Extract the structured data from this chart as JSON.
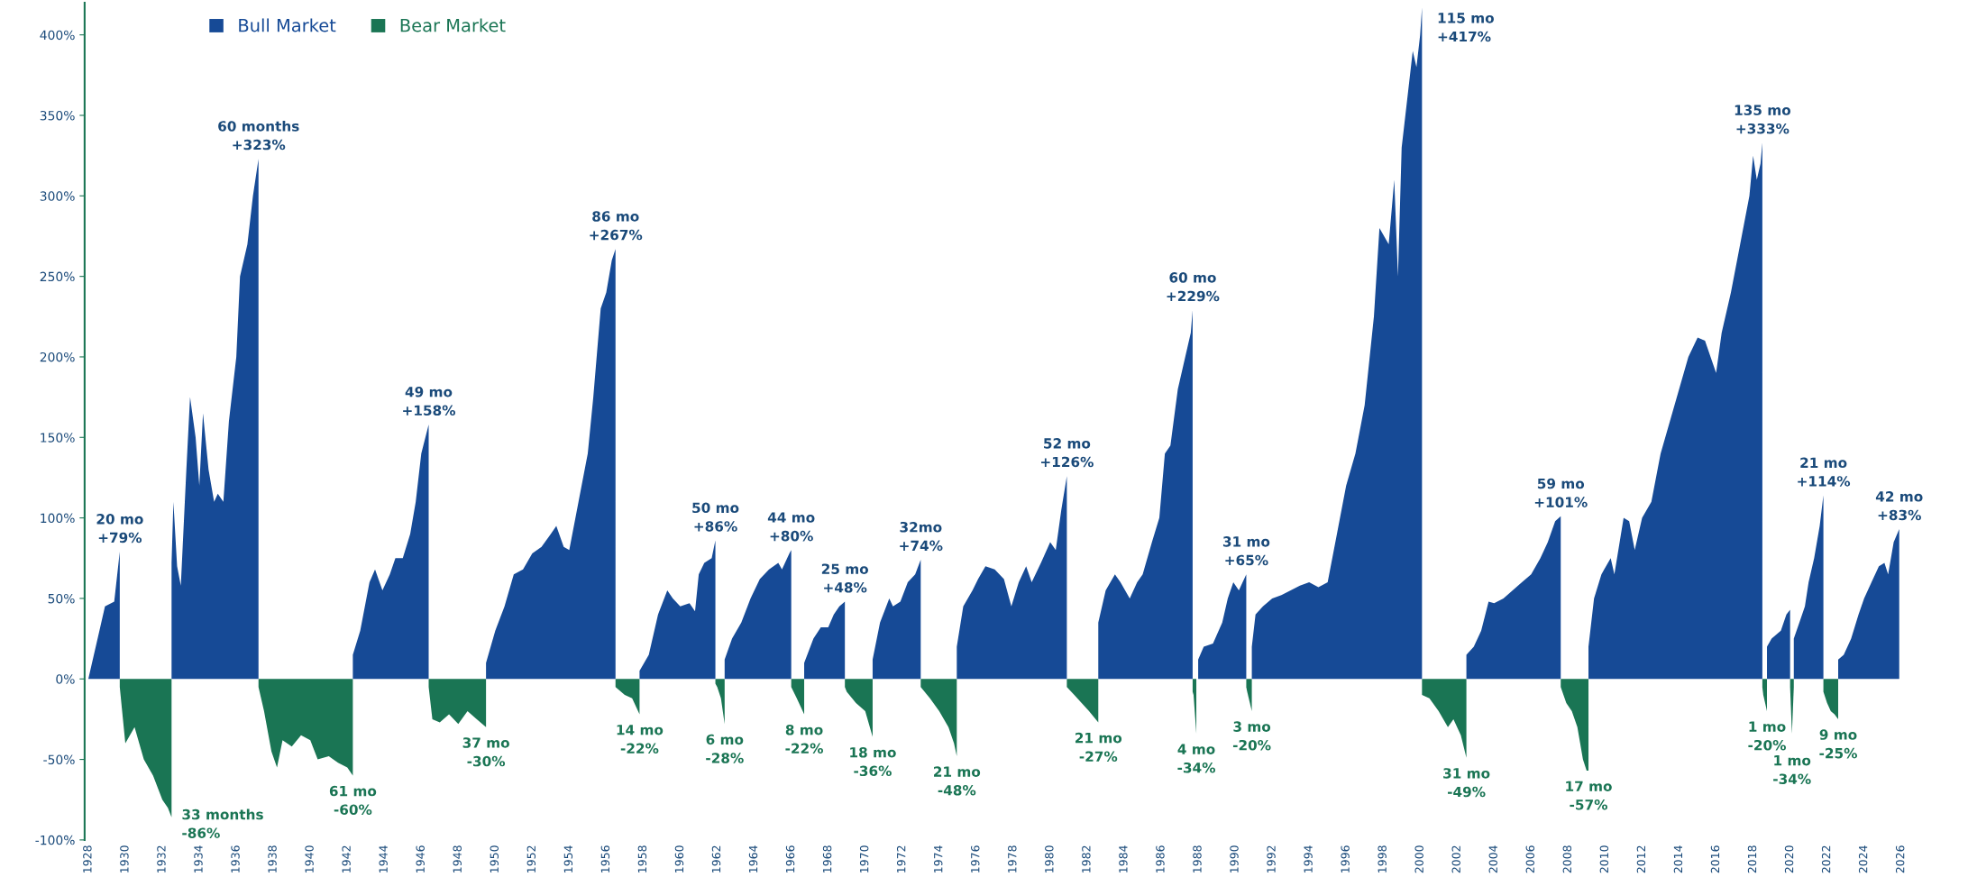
{
  "chart_data": {
    "type": "area",
    "legend": "top left",
    "grid": false,
    "xlim": [
      1927.8,
      2026
    ],
    "ylim": [
      -100,
      420
    ],
    "xticks": [
      1928,
      1930,
      1932,
      1934,
      1936,
      1938,
      1940,
      1942,
      1944,
      1946,
      1948,
      1950,
      1952,
      1954,
      1956,
      1958,
      1960,
      1962,
      1964,
      1966,
      1968,
      1970,
      1972,
      1974,
      1976,
      1978,
      1980,
      1982,
      1984,
      1986,
      1988,
      1990,
      1992,
      1994,
      1996,
      1998,
      2000,
      2002,
      2004,
      2006,
      2008,
      2010,
      2012,
      2014,
      2016,
      2018,
      2020,
      2022,
      2024,
      2026
    ],
    "yticks": [
      {
        "value": 400,
        "label": "400%"
      },
      {
        "value": 350,
        "label": "350%"
      },
      {
        "value": 300,
        "label": "300%"
      },
      {
        "value": 250,
        "label": "250%"
      },
      {
        "value": 200,
        "label": "200%"
      },
      {
        "value": 150,
        "label": "150%"
      },
      {
        "value": 100,
        "label": "100%"
      },
      {
        "value": 50,
        "label": "50%"
      },
      {
        "value": 0,
        "label": "0%"
      },
      {
        "value": -50,
        "label": "-50%"
      },
      {
        "value": -100,
        "label": "-100%"
      }
    ],
    "series": [
      {
        "name": "Bull Market",
        "color": "#164a96",
        "x": [
          1928.0,
          1928.3,
          1928.6,
          1928.9,
          1929.4,
          1929.7,
          1929.71,
          1932.5,
          1932.6,
          1932.8,
          1933.0,
          1933.3,
          1933.5,
          1933.8,
          1934.0,
          1934.2,
          1934.5,
          1934.8,
          1935.0,
          1935.3,
          1935.6,
          1936.0,
          1936.2,
          1936.6,
          1936.9,
          1937.2,
          1937.21,
          1942.3,
          1942.7,
          1943.2,
          1943.5,
          1943.9,
          1944.3,
          1944.6,
          1945.0,
          1945.4,
          1945.7,
          1946.0,
          1946.4,
          1946.41,
          1949.5,
          1950.0,
          1950.5,
          1951.0,
          1951.5,
          1952.0,
          1952.5,
          1953.0,
          1953.3,
          1953.7,
          1954.0,
          1954.5,
          1955.0,
          1955.3,
          1955.7,
          1956.0,
          1956.3,
          1956.5,
          1956.51,
          1957.8,
          1958.3,
          1958.8,
          1959.3,
          1959.6,
          1960.0,
          1960.5,
          1960.8,
          1961.0,
          1961.3,
          1961.7,
          1961.9,
          1961.91,
          1962.4,
          1962.8,
          1963.3,
          1963.8,
          1964.3,
          1964.8,
          1965.3,
          1965.5,
          1965.9,
          1966.0,
          1966.01,
          1966.7,
          1967.2,
          1967.6,
          1968.0,
          1968.3,
          1968.6,
          1968.9,
          1968.91,
          1970.4,
          1970.8,
          1971.3,
          1971.5,
          1971.9,
          1972.3,
          1972.7,
          1973.0,
          1973.01,
          1974.95,
          1975.3,
          1975.8,
          1976.1,
          1976.5,
          1977.0,
          1977.5,
          1977.9,
          1978.3,
          1978.7,
          1979.0,
          1979.5,
          1980.0,
          1980.3,
          1980.6,
          1980.9,
          1980.91,
          1982.6,
          1983.0,
          1983.5,
          1983.8,
          1984.3,
          1984.7,
          1985.0,
          1985.5,
          1985.9,
          1986.2,
          1986.5,
          1986.9,
          1987.2,
          1987.6,
          1987.7,
          1987.71,
          1988.0,
          1988.3,
          1988.8,
          1989.3,
          1989.6,
          1989.9,
          1990.2,
          1990.6,
          1990.61,
          1990.9,
          1991.1,
          1991.5,
          1992.0,
          1992.5,
          1993.0,
          1993.5,
          1994.0,
          1994.5,
          1995.0,
          1995.5,
          1996.0,
          1996.5,
          1997.0,
          1997.5,
          1997.8,
          1998.3,
          1998.6,
          1998.8,
          1999.0,
          1999.3,
          1999.6,
          1999.8,
          2000.0,
          2000.1,
          2000.11,
          2002.5,
          2002.9,
          2003.3,
          2003.7,
          2004.0,
          2004.5,
          2005.0,
          2005.5,
          2006.0,
          2006.5,
          2006.9,
          2007.3,
          2007.6,
          2007.61,
          2009.1,
          2009.4,
          2009.8,
          2010.3,
          2010.5,
          2011.0,
          2011.3,
          2011.6,
          2012.0,
          2012.5,
          2013.0,
          2013.5,
          2014.0,
          2014.5,
          2015.0,
          2015.4,
          2015.7,
          2016.0,
          2016.3,
          2016.8,
          2017.3,
          2017.8,
          2018.0,
          2018.2,
          2018.4,
          2018.5,
          2018.51,
          2018.75,
          2019.0,
          2019.3,
          2019.5,
          2019.8,
          2020.0,
          2020.01,
          2020.2,
          2020.5,
          2020.8,
          2021.0,
          2021.3,
          2021.6,
          2021.8,
          2021.81,
          2022.6,
          2022.9,
          2023.3,
          2023.7,
          2024.0,
          2024.4,
          2024.8,
          2025.1,
          2025.3,
          2025.6,
          2025.9
        ],
        "values": [
          0,
          15,
          30,
          45,
          48,
          79,
          null,
          72,
          110,
          70,
          58,
          130,
          175,
          150,
          120,
          165,
          130,
          110,
          115,
          110,
          160,
          200,
          250,
          270,
          300,
          323,
          null,
          15,
          30,
          60,
          68,
          55,
          65,
          75,
          75,
          90,
          110,
          140,
          158,
          null,
          10,
          30,
          45,
          65,
          68,
          78,
          82,
          90,
          95,
          82,
          80,
          110,
          140,
          175,
          230,
          240,
          260,
          267,
          null,
          5,
          15,
          40,
          55,
          50,
          45,
          47,
          42,
          65,
          72,
          75,
          86,
          null,
          12,
          25,
          35,
          50,
          62,
          68,
          72,
          68,
          78,
          80,
          null,
          10,
          25,
          32,
          32,
          40,
          45,
          48,
          null,
          12,
          35,
          50,
          45,
          48,
          60,
          65,
          74,
          null,
          20,
          45,
          55,
          62,
          70,
          68,
          62,
          45,
          60,
          70,
          60,
          72,
          85,
          80,
          105,
          126,
          null,
          35,
          55,
          65,
          60,
          50,
          60,
          65,
          85,
          100,
          140,
          145,
          180,
          195,
          215,
          229,
          null,
          12,
          20,
          22,
          35,
          50,
          60,
          55,
          65,
          null,
          20,
          40,
          45,
          50,
          52,
          55,
          58,
          60,
          57,
          60,
          90,
          120,
          140,
          170,
          225,
          280,
          270,
          310,
          250,
          330,
          360,
          390,
          380,
          400,
          417,
          null,
          15,
          20,
          30,
          48,
          47,
          50,
          55,
          60,
          65,
          75,
          85,
          98,
          101,
          null,
          20,
          50,
          65,
          75,
          65,
          100,
          98,
          80,
          100,
          110,
          140,
          160,
          180,
          200,
          212,
          210,
          200,
          190,
          215,
          240,
          270,
          300,
          325,
          310,
          320,
          333,
          null,
          20,
          25,
          28,
          30,
          40,
          43,
          null,
          25,
          35,
          45,
          60,
          75,
          95,
          114,
          null,
          12,
          15,
          25,
          40,
          50,
          60,
          70,
          72,
          65,
          85,
          93
        ]
      },
      {
        "name": "Bear Market",
        "color": "#1a7554",
        "x": [
          1929.7,
          1930.0,
          1930.5,
          1931.0,
          1931.5,
          1932.0,
          1932.3,
          1932.5,
          1932.51,
          1937.2,
          1937.5,
          1937.9,
          1938.2,
          1938.5,
          1939.0,
          1939.5,
          1940.0,
          1940.4,
          1941.0,
          1941.5,
          1942.0,
          1942.3,
          1942.31,
          1946.4,
          1946.6,
          1947.0,
          1947.5,
          1948.0,
          1948.5,
          1949.0,
          1949.5,
          1949.51,
          1956.5,
          1957.0,
          1957.4,
          1957.8,
          1957.81,
          1961.9,
          1962.0,
          1962.2,
          1962.4,
          1962.41,
          1966.0,
          1966.3,
          1966.7,
          1966.71,
          1968.9,
          1969.0,
          1969.5,
          1970.0,
          1970.4,
          1970.41,
          1973.0,
          1973.5,
          1974.0,
          1974.5,
          1974.8,
          1974.95,
          1974.96,
          1980.9,
          1981.3,
          1981.7,
          1982.1,
          1982.6,
          1982.61,
          1987.7,
          1987.75,
          1987.9,
          1987.91,
          1990.6,
          1990.65,
          1990.9,
          1990.91,
          2000.1,
          2000.5,
          2001.0,
          2001.5,
          2001.8,
          2002.2,
          2002.5,
          2002.51,
          2007.6,
          2007.9,
          2008.2,
          2008.5,
          2008.8,
          2009.0,
          2009.1,
          2009.11,
          2018.5,
          2018.55,
          2018.75,
          2018.76,
          2020.0,
          2020.1,
          2020.2,
          2020.21,
          2021.8,
          2022.0,
          2022.2,
          2022.4,
          2022.6
        ],
        "values": [
          -5,
          -40,
          -30,
          -50,
          -60,
          -75,
          -80,
          -86,
          null,
          -5,
          -20,
          -45,
          -55,
          -38,
          -42,
          -35,
          -38,
          -50,
          -48,
          -52,
          -55,
          -60,
          null,
          -5,
          -25,
          -27,
          -22,
          -28,
          -20,
          -25,
          -30,
          null,
          -5,
          -10,
          -12,
          -22,
          null,
          -3,
          -5,
          -12,
          -28,
          null,
          -5,
          -12,
          -22,
          null,
          -5,
          -8,
          -15,
          -20,
          -36,
          null,
          -5,
          -12,
          -20,
          -30,
          -40,
          -48,
          null,
          -5,
          -10,
          -15,
          -20,
          -27,
          null,
          -8,
          -10,
          -34,
          null,
          -5,
          -8,
          -20,
          null,
          -10,
          -12,
          -20,
          -30,
          -25,
          -35,
          -49,
          null,
          -5,
          -15,
          -20,
          -30,
          -50,
          -57,
          -57,
          null,
          -5,
          -10,
          -20,
          null,
          -5,
          -34,
          -5,
          null,
          -8,
          -15,
          -20,
          -22,
          -25
        ]
      }
    ],
    "annotations": [
      {
        "text": "20 mo\n+79%",
        "x": 1929.7,
        "y": 79
      },
      {
        "text": "60 months\n+323%",
        "x": 1937.2,
        "y": 323
      },
      {
        "text": "49 mo\n+158%",
        "x": 1946.4,
        "y": 158
      },
      {
        "text": "86 mo\n+267%",
        "x": 1956.5,
        "y": 267
      },
      {
        "text": "50 mo\n+86%",
        "x": 1961.9,
        "y": 86
      },
      {
        "text": "44 mo\n+80%",
        "x": 1966.0,
        "y": 80
      },
      {
        "text": "25 mo\n+48%",
        "x": 1968.9,
        "y": 48
      },
      {
        "text": "32mo\n+74%",
        "x": 1973.0,
        "y": 74
      },
      {
        "text": "52 mo\n+126%",
        "x": 1980.9,
        "y": 126
      },
      {
        "text": "60 mo\n+229%",
        "x": 1987.7,
        "y": 229
      },
      {
        "text": "31 mo\n+65%",
        "x": 1990.6,
        "y": 65
      },
      {
        "text": "115 mo\n+417%",
        "x": 2000.1,
        "y": 417
      },
      {
        "text": "59 mo\n+101%",
        "x": 2007.6,
        "y": 101
      },
      {
        "text": "135 mo\n+333%",
        "x": 2018.5,
        "y": 333
      },
      {
        "text": "21 mo\n+114%",
        "x": 2021.8,
        "y": 114
      },
      {
        "text": "42 mo\n+83%",
        "x": 2025.9,
        "y": 93
      },
      {
        "text": "33 months\n-86%",
        "x": 1932.5,
        "y": -86
      },
      {
        "text": "61 mo\n-60%",
        "x": 1942.3,
        "y": -60
      },
      {
        "text": "37 mo\n-30%",
        "x": 1949.5,
        "y": -30
      },
      {
        "text": "14 mo\n-22%",
        "x": 1957.8,
        "y": -22
      },
      {
        "text": "6 mo\n-28%",
        "x": 1962.4,
        "y": -28
      },
      {
        "text": "8 mo\n-22%",
        "x": 1966.7,
        "y": -22
      },
      {
        "text": "18 mo\n-36%",
        "x": 1970.4,
        "y": -36
      },
      {
        "text": "21 mo\n-48%",
        "x": 1974.95,
        "y": -48
      },
      {
        "text": "21 mo\n-27%",
        "x": 1982.6,
        "y": -27
      },
      {
        "text": "4 mo\n-34%",
        "x": 1987.9,
        "y": -34
      },
      {
        "text": "3 mo\n-20%",
        "x": 1990.9,
        "y": -20
      },
      {
        "text": "31 mo\n-49%",
        "x": 2002.5,
        "y": -49
      },
      {
        "text": "17 mo\n-57%",
        "x": 2009.1,
        "y": -57
      },
      {
        "text": "1 mo\n-20%",
        "x": 2018.75,
        "y": -20
      },
      {
        "text": "1 mo\n-34%",
        "x": 2020.1,
        "y": -34
      },
      {
        "text": "9 mo\n-25%",
        "x": 2022.6,
        "y": -25
      }
    ]
  }
}
